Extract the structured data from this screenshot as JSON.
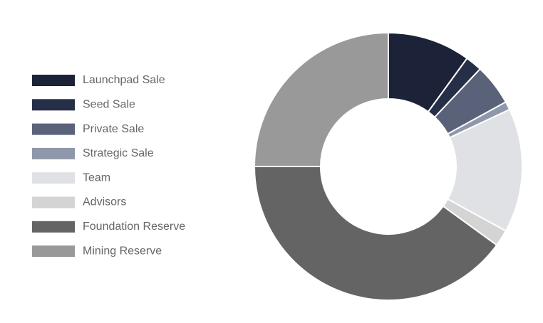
{
  "chart_data": {
    "type": "donut",
    "categories": [
      "Launchpad Sale",
      "Seed Sale",
      "Private Sale",
      "Strategic Sale",
      "Team",
      "Advisors",
      "Foundation Reserve",
      "Mining Reserve"
    ],
    "values": [
      10,
      2,
      5,
      1,
      15,
      2,
      40,
      25
    ],
    "colors": [
      "#1c2237",
      "#262f48",
      "#5a6279",
      "#8f97aa",
      "#dfe1e5",
      "#d4d4d4",
      "#646464",
      "#999999"
    ],
    "legend": "left"
  }
}
